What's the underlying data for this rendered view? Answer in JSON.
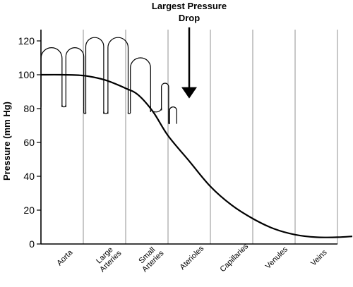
{
  "chart_data": {
    "type": "line",
    "title_lines": [
      "Largest Pressure",
      "Drop"
    ],
    "ylabel": "Pressure (mm Hg)",
    "xlabel": "",
    "ylim": [
      0,
      125
    ],
    "yticks": [
      0,
      20,
      40,
      60,
      80,
      100,
      120
    ],
    "grid": "vertical",
    "categories": [
      [
        "Aorta"
      ],
      [
        "Large",
        "Arteries"
      ],
      [
        "Small",
        "Arteries"
      ],
      [
        "Aterioles"
      ],
      [
        "Capillaries"
      ],
      [
        "Venules"
      ],
      [
        "Veins"
      ]
    ],
    "series": [
      {
        "role": "mean-pressure",
        "points": [
          [
            0.0,
            100
          ],
          [
            0.5,
            100
          ],
          [
            1.0,
            99.5
          ],
          [
            1.5,
            97
          ],
          [
            2.0,
            92
          ],
          [
            2.3,
            88
          ],
          [
            2.65,
            78
          ],
          [
            3.0,
            64
          ],
          [
            3.5,
            49
          ],
          [
            4.0,
            34
          ],
          [
            4.5,
            23
          ],
          [
            5.0,
            15
          ],
          [
            5.5,
            9
          ],
          [
            6.0,
            5.5
          ],
          [
            6.5,
            4
          ],
          [
            7.0,
            4
          ],
          [
            7.35,
            4.5
          ]
        ]
      },
      {
        "role": "pulsatile-pressure",
        "points": [
          [
            0.0,
            100
          ],
          [
            0.5,
            100
          ],
          [
            1.0,
            99.5
          ],
          [
            1.5,
            97
          ],
          [
            2.0,
            92
          ],
          [
            2.3,
            88
          ],
          [
            2.65,
            78
          ]
        ],
        "peaks": [
          {
            "x": 0.25,
            "min": 81,
            "max": 116
          },
          {
            "x": 0.8,
            "min": 81,
            "max": 116
          },
          {
            "x": 1.27,
            "min": 77,
            "max": 122
          },
          {
            "x": 1.82,
            "min": 77,
            "max": 122
          },
          {
            "x": 2.35,
            "min": 78,
            "max": 110
          },
          {
            "x": 2.93,
            "min": 79,
            "max": 95
          },
          {
            "x": 3.12,
            "min": 71,
            "max": 81
          }
        ]
      }
    ],
    "annotation": {
      "type": "arrow-down",
      "x": 3.5,
      "from_y": 128,
      "to_y": 86
    }
  }
}
